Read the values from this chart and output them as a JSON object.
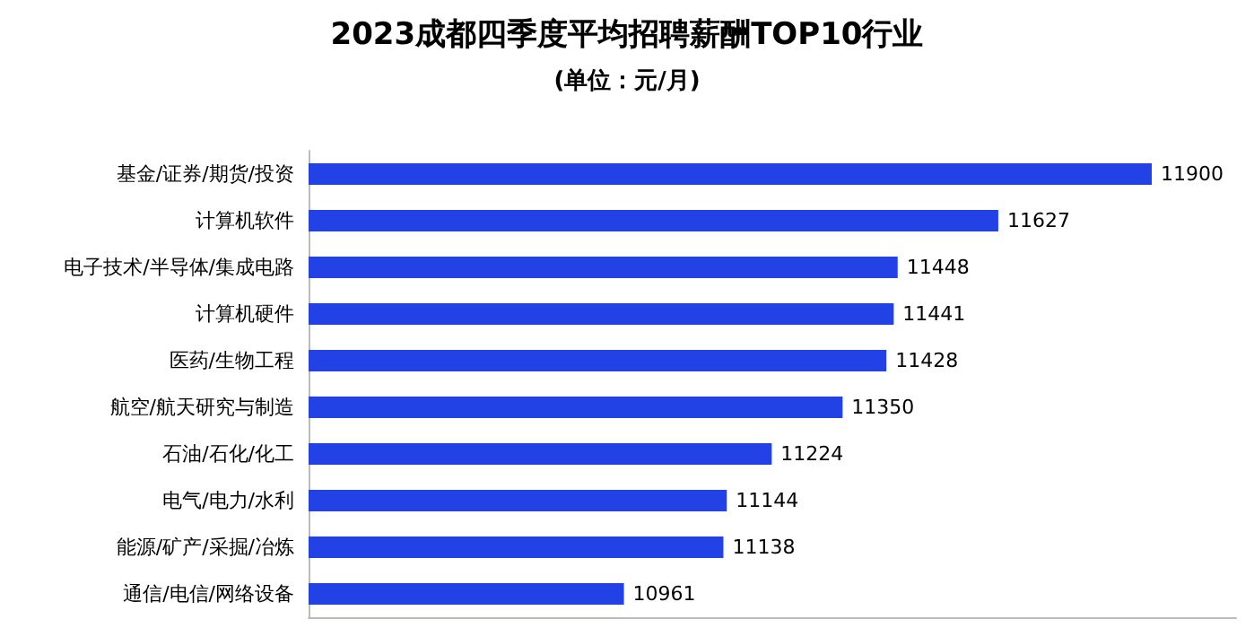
{
  "chart_data": {
    "type": "bar",
    "orientation": "horizontal",
    "title": "2023成都四季度平均招聘薪酬TOP10行业",
    "subtitle": "(单位：元/月)",
    "categories": [
      "基金/证券/期货/投资",
      "计算机软件",
      "电子技术/半导体/集成电路",
      "计算机硬件",
      "医药/生物工程",
      "航空/航天研究与制造",
      "石油/石化/化工",
      "电气/电力/水利",
      "能源/矿产/采掘/冶炼",
      "通信/电信/网络设备"
    ],
    "values": [
      11900,
      11627,
      11448,
      11441,
      11428,
      11350,
      11224,
      11144,
      11138,
      10961
    ],
    "color": "#2342e6",
    "xlim": [
      10400,
      12050
    ],
    "tick_labels": "y",
    "data_labels": true
  }
}
